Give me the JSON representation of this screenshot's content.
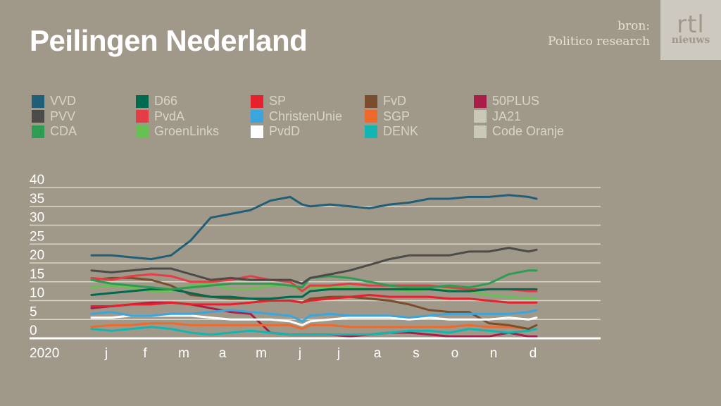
{
  "header": {
    "title": "Peilingen Nederland",
    "source_label": "bron:",
    "source_name": "Politico research",
    "logo_top": "rtl",
    "logo_bottom": "nieuws"
  },
  "colors": {
    "background": "#a0998a",
    "grid": "#d9d4c6",
    "axis": "#ffffff"
  },
  "chart_data": {
    "type": "line",
    "title": "Peilingen Nederland",
    "xlabel": "2020",
    "ylabel": "",
    "ylim": [
      0,
      40
    ],
    "yticks": [
      0,
      5,
      10,
      15,
      20,
      25,
      30,
      35,
      40
    ],
    "grid": true,
    "legend_position": "top",
    "year_label": "2020",
    "x_ticks": [
      "j",
      "f",
      "m",
      "a",
      "m",
      "j",
      "j",
      "a",
      "s",
      "o",
      "n",
      "d"
    ],
    "x_note": "x values are months from start of January 2020 (0 = early Jan, 11.2 = early Dec)",
    "x": [
      0,
      0.5,
      1,
      1.5,
      2,
      2.5,
      3,
      3.5,
      4,
      4.5,
      5,
      5.3,
      5.5,
      6,
      6.5,
      7,
      7.5,
      8,
      8.5,
      9,
      9.5,
      10,
      10.5,
      11,
      11.2
    ],
    "series": [
      {
        "name": "VVD",
        "color": "#215e77",
        "values": [
          22,
          22,
          21.5,
          21,
          22,
          26,
          32,
          33,
          34,
          36.5,
          37.5,
          35.5,
          35,
          35.5,
          35,
          34.5,
          35.5,
          36,
          37,
          37,
          37.5,
          37.5,
          38,
          37.5,
          37
        ]
      },
      {
        "name": "PVV",
        "color": "#4d4b47",
        "values": [
          18,
          17.5,
          18,
          18.5,
          18.5,
          17,
          15.5,
          16,
          15.5,
          15.5,
          15.5,
          14.5,
          16,
          17,
          18,
          19.5,
          21,
          22,
          22,
          22,
          23,
          23,
          24,
          23,
          23.5
        ]
      },
      {
        "name": "CDA",
        "color": "#2f9c54",
        "values": [
          15.5,
          14.5,
          14,
          13.5,
          13,
          13.5,
          14,
          14.5,
          14.5,
          14.5,
          14,
          13.5,
          16,
          16.5,
          16,
          15,
          14,
          13.5,
          13.5,
          14,
          13.5,
          14.5,
          17,
          18,
          18
        ]
      },
      {
        "name": "D66",
        "color": "#006a4e",
        "values": [
          11.5,
          12,
          12.5,
          13,
          13,
          12,
          11,
          11,
          10.5,
          10.5,
          11,
          11,
          12.5,
          13,
          13,
          13,
          13,
          13,
          13,
          12.5,
          12.5,
          13,
          13,
          13,
          13
        ]
      },
      {
        "name": "PvdA",
        "color": "#e63c46",
        "values": [
          16,
          15.5,
          16.5,
          17,
          16.5,
          15,
          15,
          15.5,
          16.5,
          15.5,
          15,
          12.5,
          14,
          14,
          14.5,
          14,
          14,
          14,
          14,
          13.5,
          13,
          13,
          13,
          12.5,
          12.5
        ]
      },
      {
        "name": "GroenLinks",
        "color": "#67c052",
        "values": [
          13.5,
          14,
          13.5,
          12.5,
          12.5,
          14,
          14.5,
          13,
          13,
          14,
          14,
          12.5,
          13.5,
          13.5,
          13.5,
          13,
          13,
          12.5,
          13,
          13,
          12.5,
          11.5,
          11,
          10.5,
          10.5
        ]
      },
      {
        "name": "SP",
        "color": "#e5212d",
        "values": [
          8.5,
          8.5,
          9,
          9,
          9.5,
          9,
          9,
          9,
          9.5,
          10,
          10,
          9.5,
          10,
          10.5,
          11,
          11.5,
          11,
          11,
          11,
          10.5,
          10.5,
          10,
          9.5,
          9.5,
          9.5
        ]
      },
      {
        "name": "ChristenUnie",
        "color": "#3aa6dd",
        "values": [
          6.5,
          7,
          6,
          6,
          6.5,
          6.5,
          7,
          7.5,
          7,
          6.5,
          6,
          4.5,
          6,
          6.5,
          6,
          6,
          6,
          5.5,
          6,
          6.5,
          6.5,
          6.5,
          6.5,
          7,
          7.5
        ]
      },
      {
        "name": "PvdD",
        "color": "#ffffff",
        "values": [
          5.5,
          5.5,
          6,
          6,
          6,
          6,
          5.5,
          5,
          5,
          5,
          4.5,
          3.5,
          4.5,
          5,
          5.5,
          5.5,
          5.5,
          5,
          5.5,
          5,
          5,
          5,
          5.5,
          5,
          5.5
        ]
      },
      {
        "name": "FvD",
        "color": "#7a4e2d",
        "values": [
          15.5,
          16,
          16,
          15.5,
          14,
          11.5,
          11,
          10.5,
          10.5,
          10,
          10,
          9.5,
          10.5,
          11,
          11,
          10.5,
          10,
          9,
          7.5,
          7,
          7,
          4,
          3.5,
          2.5,
          3.5
        ]
      },
      {
        "name": "SGP",
        "color": "#ee6a2c",
        "values": [
          3,
          3.5,
          3.5,
          4,
          4,
          3.5,
          3.5,
          3.5,
          3.5,
          3.5,
          3.5,
          2.5,
          3.5,
          3.5,
          3,
          3,
          3,
          3,
          3,
          3,
          3.5,
          3,
          3,
          2.5,
          3.5
        ]
      },
      {
        "name": "DENK",
        "color": "#12b5b0",
        "values": [
          2.5,
          2,
          2.5,
          3,
          2.5,
          1.5,
          1,
          1.5,
          2,
          1.5,
          1,
          1,
          1,
          1,
          1,
          1,
          1.5,
          2,
          2,
          1.5,
          2.5,
          2,
          1.5,
          2,
          2.5
        ]
      },
      {
        "name": "50PLUS",
        "color": "#a81e48",
        "values": [
          8,
          8.5,
          9,
          9.5,
          9.5,
          9,
          8,
          7,
          6.5,
          1.5,
          1,
          1,
          1,
          1,
          0.5,
          1,
          1.5,
          1.5,
          1,
          0.5,
          0.5,
          0.5,
          1.5,
          0.5,
          0.5
        ]
      },
      {
        "name": "JA21",
        "color": "#c8c9b9",
        "values": []
      },
      {
        "name": "Code Oranje",
        "color": "#c8c9b9",
        "values": []
      }
    ]
  }
}
